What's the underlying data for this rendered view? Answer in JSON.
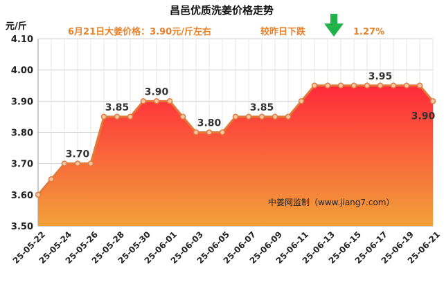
{
  "chart_data": {
    "type": "area",
    "title": "昌邑优质洗姜价格走势",
    "subtitle_left": "6月21日大姜价格：3.90元/斤左右",
    "subtitle_right": "较昨日下跌",
    "change_value": "1.27%",
    "change_icon": "down-arrow-icon",
    "ylabel": "元/斤",
    "ylim": [
      3.5,
      4.1
    ],
    "yticks": [
      "3.50",
      "3.60",
      "3.70",
      "3.80",
      "3.90",
      "4.00",
      "4.10"
    ],
    "x": [
      "25-05-22",
      "25-05-23",
      "25-05-24",
      "25-05-25",
      "25-05-26",
      "25-05-27",
      "25-05-28",
      "25-05-29",
      "25-05-30",
      "25-05-31",
      "25-06-01",
      "25-06-02",
      "25-06-03",
      "25-06-04",
      "25-06-05",
      "25-06-06",
      "25-06-07",
      "25-06-08",
      "25-06-09",
      "25-06-10",
      "25-06-11",
      "25-06-12",
      "25-06-13",
      "25-06-14",
      "25-06-15",
      "25-06-16",
      "25-06-17",
      "25-06-18",
      "25-06-19",
      "25-06-20",
      "25-06-21"
    ],
    "xtick_labels": [
      "25-05-22",
      "25-05-24",
      "25-05-26",
      "25-05-28",
      "25-05-30",
      "25-06-01",
      "25-06-03",
      "25-06-05",
      "25-06-07",
      "25-06-09",
      "25-06-11",
      "25-06-13",
      "25-06-15",
      "25-06-17",
      "25-06-19",
      "25-06-21"
    ],
    "values": [
      3.6,
      3.65,
      3.7,
      3.7,
      3.7,
      3.85,
      3.85,
      3.85,
      3.9,
      3.9,
      3.9,
      3.85,
      3.8,
      3.8,
      3.8,
      3.85,
      3.85,
      3.85,
      3.85,
      3.85,
      3.9,
      3.95,
      3.95,
      3.95,
      3.95,
      3.95,
      3.95,
      3.95,
      3.95,
      3.95,
      3.9
    ],
    "data_labels": [
      {
        "index": 3,
        "text": "3.70"
      },
      {
        "index": 6,
        "text": "3.85"
      },
      {
        "index": 9,
        "text": "3.90"
      },
      {
        "index": 13,
        "text": "3.80"
      },
      {
        "index": 17,
        "text": "3.85"
      },
      {
        "index": 26,
        "text": "3.95"
      },
      {
        "index": 30,
        "text": "3.90"
      }
    ],
    "source": "中姜网监制（www.jiang7.com）",
    "grid": true,
    "colors": {
      "line": "#e07b39",
      "marker_fill": "#f3c7a8",
      "area_top": "#ff2a3a",
      "area_bottom": "#f2a13a",
      "subtitle": "#e8822a",
      "arrow": "#1fb34a"
    }
  }
}
